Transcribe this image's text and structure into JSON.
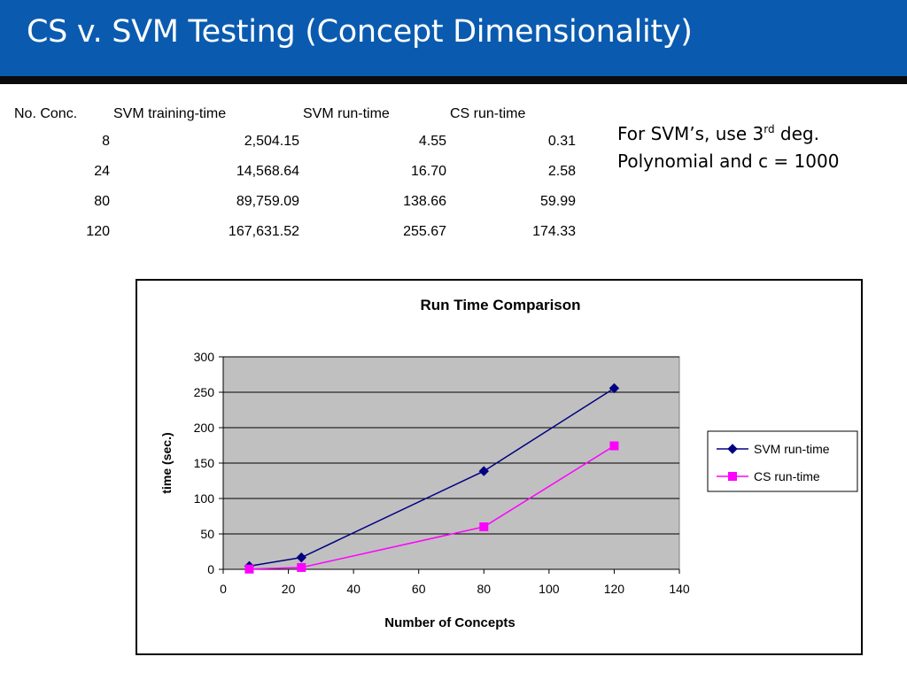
{
  "slide": {
    "title": "CS v. SVM Testing (Concept Dimensionality)",
    "colors": {
      "title_bar": "#0a5bb0",
      "rule": "#0b0b0b"
    }
  },
  "table": {
    "headers": [
      "No. Conc.",
      "SVM training-time",
      "SVM run-time",
      "CS run-time"
    ],
    "rows": [
      [
        "8",
        "2,504.15",
        "4.55",
        "0.31"
      ],
      [
        "24",
        "14,568.64",
        "16.70",
        "2.58"
      ],
      [
        "80",
        "89,759.09",
        "138.66",
        "59.99"
      ],
      [
        "120",
        "167,631.52",
        "255.67",
        "174.33"
      ]
    ]
  },
  "note": {
    "line1_before": "For SVM’s, use 3",
    "line1_sup": "rd",
    "line1_after": " deg.",
    "line2": "Polynomial and c = 1000"
  },
  "chart_data": {
    "type": "line",
    "title": "Run Time Comparison",
    "xlabel": "Number of Concepts",
    "ylabel": "time (sec.)",
    "xlim": [
      0,
      140
    ],
    "ylim": [
      0,
      300
    ],
    "xticks": [
      0,
      20,
      40,
      60,
      80,
      100,
      120,
      140
    ],
    "yticks": [
      0,
      50,
      100,
      150,
      200,
      250,
      300
    ],
    "grid": true,
    "legend_position": "right",
    "series": [
      {
        "name": "SVM run-time",
        "color": "#000080",
        "marker": "diamond",
        "x": [
          8,
          24,
          80,
          120
        ],
        "y": [
          4.55,
          16.7,
          138.66,
          255.67
        ]
      },
      {
        "name": "CS run-time",
        "color": "#ff00ff",
        "marker": "square",
        "x": [
          8,
          24,
          80,
          120
        ],
        "y": [
          0.31,
          2.58,
          59.99,
          174.33
        ]
      }
    ],
    "plot_background": "#c0c0c0"
  }
}
